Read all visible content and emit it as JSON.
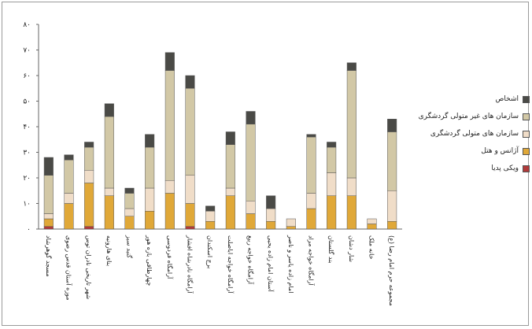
{
  "chart_data": {
    "type": "bar",
    "stacked": true,
    "title": "",
    "xlabel": "",
    "ylabel": "",
    "ylim": [
      0,
      80
    ],
    "ytick_labels": [
      "۰",
      "۱۰",
      "۲۰",
      "۳۰",
      "۴۰",
      "۵۰",
      "۶۰",
      "۷۰",
      "۸۰"
    ],
    "grid": false,
    "legend_position": "right",
    "categories": [
      "مسجد گوهرشاد",
      "موزه آستان قدس رضوی",
      "شهر تاریخی نادران توس",
      "بنای هارونیه",
      "گنبد سبز",
      "چهارطاقی بازه هور",
      "آرامگاه فردوسی",
      "آرامگاه نادرشاه افشار",
      "برج اسکندان",
      "آرامگاه خواجه اباصلت",
      "آرامگاه خواجه ربیع",
      "آستان امام زاده یحیی",
      "امام زاده یاسر و ناصر",
      "آرامگاه خواجه مراد",
      "بند گلستان",
      "شار دشان",
      "خانه ملک",
      "مجموعه حرم امام رضا (ع)"
    ],
    "series": [
      {
        "name": "ویکی پدیا",
        "color": "#b03a3a",
        "values": [
          1,
          0,
          1,
          0,
          0,
          0,
          0,
          1,
          0,
          0,
          0,
          0,
          0,
          0,
          0,
          0,
          0,
          0
        ]
      },
      {
        "name": "آژانس و هتل",
        "color": "#e0a838",
        "values": [
          3,
          10,
          17,
          13,
          5,
          7,
          14,
          9,
          3,
          13,
          6,
          3,
          1,
          8,
          13,
          13,
          2,
          3
        ]
      },
      {
        "name": "سازمان های متولی گردشگری",
        "color": "#f0ddc8",
        "values": [
          2,
          4,
          5,
          3,
          3,
          9,
          5,
          11,
          4,
          3,
          5,
          5,
          3,
          6,
          9,
          7,
          2,
          12
        ]
      },
      {
        "name": "سازمان های غیر متولی گردشگری",
        "color": "#d2c8a6",
        "values": [
          15,
          13,
          9,
          28,
          6,
          16,
          43,
          34,
          0,
          17,
          30,
          0,
          0,
          22,
          10,
          42,
          0,
          23
        ]
      },
      {
        "name": "اشخاص",
        "color": "#4a4a46",
        "values": [
          7,
          2,
          2,
          5,
          2,
          5,
          7,
          5,
          2,
          5,
          5,
          5,
          0,
          1,
          2,
          3,
          0,
          5
        ]
      }
    ]
  }
}
